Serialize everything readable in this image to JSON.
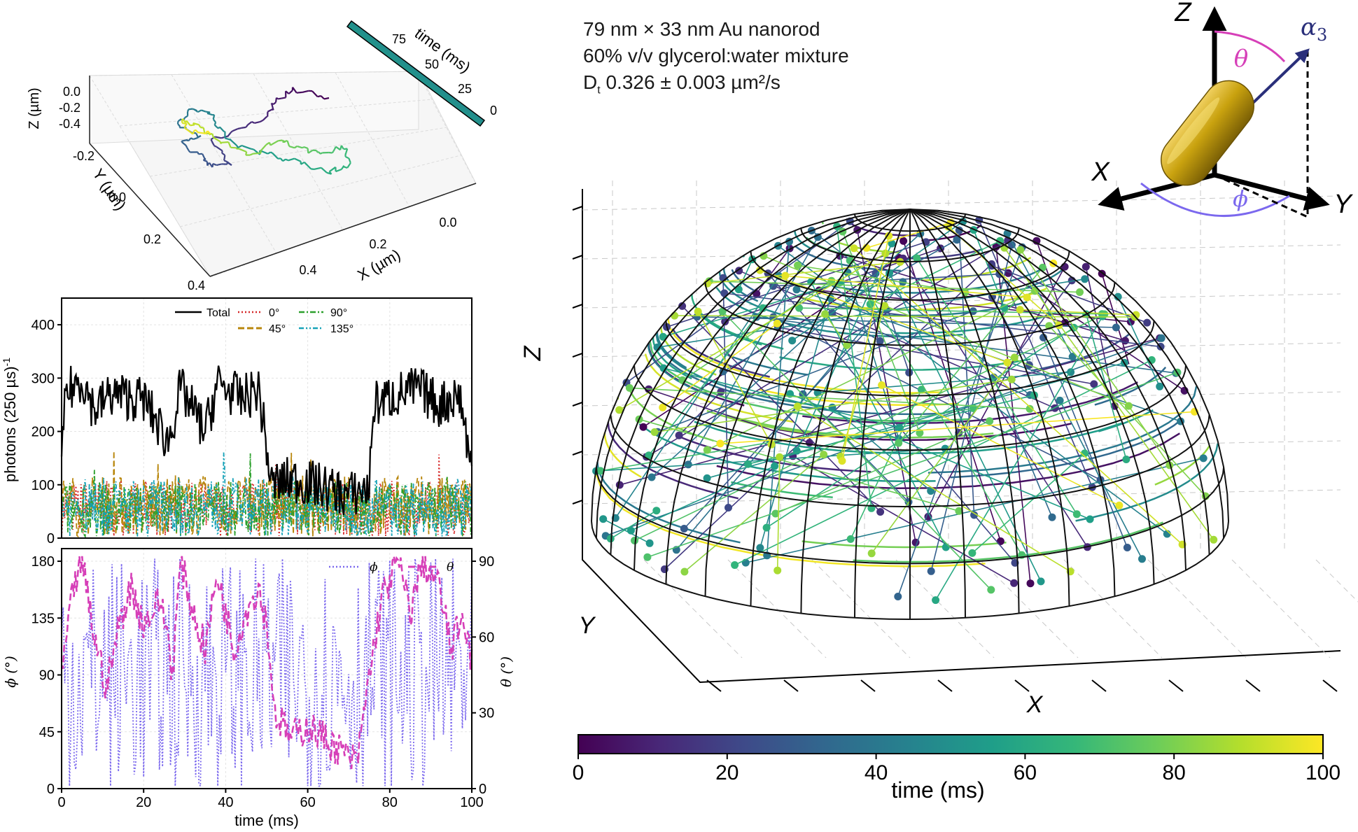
{
  "info": {
    "line1": "79 nm × 33 nm Au nanorod",
    "line2": "60% v/v glycerol:water mixture",
    "line3_prefix": "D",
    "line3_sub": "t",
    "line3_value": "0.326 ± 0.003 µm²/s"
  },
  "colors": {
    "viridis": [
      "#440154",
      "#482878",
      "#3e4a89",
      "#31688e",
      "#26828e",
      "#1f9e89",
      "#35b779",
      "#6dcd59",
      "#b4de2c",
      "#fde725"
    ],
    "total": "#000000",
    "pol_0": "#d62728",
    "pol_45": "#b8860b",
    "pol_90": "#2ca02c",
    "pol_135": "#17a2b8",
    "phi": "#7b68ee",
    "theta": "#d63fb8",
    "rod": "#b8960b"
  },
  "chart_data": [
    {
      "id": "trajectory3d",
      "type": "line3d",
      "xlabel": "X (µm)",
      "ylabel": "Y (µm)",
      "zlabel": "Z (µm)",
      "x_ticks": [
        "0.4",
        "0.2",
        "0.0"
      ],
      "y_ticks": [
        "-0.2",
        "0.0",
        "0.2",
        "0.4"
      ],
      "z_ticks": [
        "0.0",
        "-0.2",
        "-0.4"
      ],
      "colorbar_label": "time (ms)",
      "colorbar_ticks": [
        "75",
        "50",
        "25",
        "0"
      ],
      "grid": true
    },
    {
      "id": "photons",
      "type": "line",
      "ylabel": "photons (250 µs)",
      "ylabel_sup": "-1",
      "xlim": [
        0,
        100
      ],
      "ylim": [
        0,
        450
      ],
      "yticks": [
        0,
        100,
        200,
        300,
        400
      ],
      "grid": true,
      "legend_position": "top-center",
      "series": [
        {
          "name": "Total",
          "style": "solid",
          "levels": [
            [
              0,
              130
            ],
            [
              1,
              270
            ],
            [
              5,
              300
            ],
            [
              8,
              240
            ],
            [
              12,
              270
            ],
            [
              20,
              260
            ],
            [
              26,
              180
            ],
            [
              29,
              280
            ],
            [
              35,
              200
            ],
            [
              38,
              290
            ],
            [
              44,
              260
            ],
            [
              48,
              280
            ],
            [
              50,
              170
            ],
            [
              51,
              100
            ],
            [
              56,
              110
            ],
            [
              62,
              100
            ],
            [
              70,
              80
            ],
            [
              75,
              95
            ],
            [
              76,
              250
            ],
            [
              82,
              270
            ],
            [
              87,
              280
            ],
            [
              92,
              250
            ],
            [
              97,
              270
            ],
            [
              100,
              130
            ]
          ]
        },
        {
          "name": "0°",
          "style": "dotted",
          "mean": 55
        },
        {
          "name": "45°",
          "style": "dashed",
          "mean": 60
        },
        {
          "name": "90°",
          "style": "dashdot",
          "mean": 55
        },
        {
          "name": "135°",
          "style": "dashdotdot",
          "mean": 58
        }
      ]
    },
    {
      "id": "angles",
      "type": "line",
      "xlabel": "time (ms)",
      "ylabel_left": "ϕ (°)",
      "ylabel_right": "θ (°)",
      "xlim": [
        0,
        100
      ],
      "xticks": [
        0,
        20,
        40,
        60,
        80,
        100
      ],
      "ylim_left": [
        0,
        190
      ],
      "yticks_left": [
        0,
        45,
        90,
        135,
        180
      ],
      "ylim_right": [
        0,
        95
      ],
      "yticks_right": [
        0,
        30,
        60,
        90
      ],
      "grid": true,
      "legend_position": "top-right",
      "series": [
        {
          "name": "ϕ",
          "style": "dotted",
          "axis": "left"
        },
        {
          "name": "θ",
          "style": "dashed",
          "axis": "right",
          "levels": [
            [
              0,
              45
            ],
            [
              3,
              80
            ],
            [
              5,
              90
            ],
            [
              8,
              60
            ],
            [
              11,
              40
            ],
            [
              14,
              65
            ],
            [
              17,
              80
            ],
            [
              20,
              65
            ],
            [
              24,
              75
            ],
            [
              26,
              60
            ],
            [
              27,
              45
            ],
            [
              29,
              90
            ],
            [
              32,
              70
            ],
            [
              35,
              55
            ],
            [
              38,
              85
            ],
            [
              42,
              55
            ],
            [
              45,
              70
            ],
            [
              48,
              80
            ],
            [
              50,
              65
            ],
            [
              52,
              30
            ],
            [
              56,
              20
            ],
            [
              60,
              25
            ],
            [
              64,
              20
            ],
            [
              68,
              15
            ],
            [
              72,
              10
            ],
            [
              75,
              45
            ],
            [
              78,
              75
            ],
            [
              82,
              90
            ],
            [
              85,
              70
            ],
            [
              88,
              90
            ],
            [
              92,
              80
            ],
            [
              95,
              55
            ],
            [
              98,
              70
            ],
            [
              100,
              50
            ]
          ]
        }
      ]
    },
    {
      "id": "orientation_hemisphere",
      "type": "scatter3d",
      "xlabel": "X",
      "ylabel": "Y",
      "zlabel": "Z",
      "description_hidden": "",
      "colorbar_label": "time (ms)",
      "colorbar_ticks": [
        "0",
        "20",
        "40",
        "60",
        "80",
        "100"
      ],
      "colorbar_range": [
        0,
        100
      ]
    },
    {
      "id": "schematic",
      "type": "diagram",
      "labels": {
        "z": "Z",
        "x": "X",
        "y": "Y",
        "theta": "θ",
        "phi": "ϕ",
        "alpha": "α",
        "alpha_sub": "3"
      }
    }
  ]
}
